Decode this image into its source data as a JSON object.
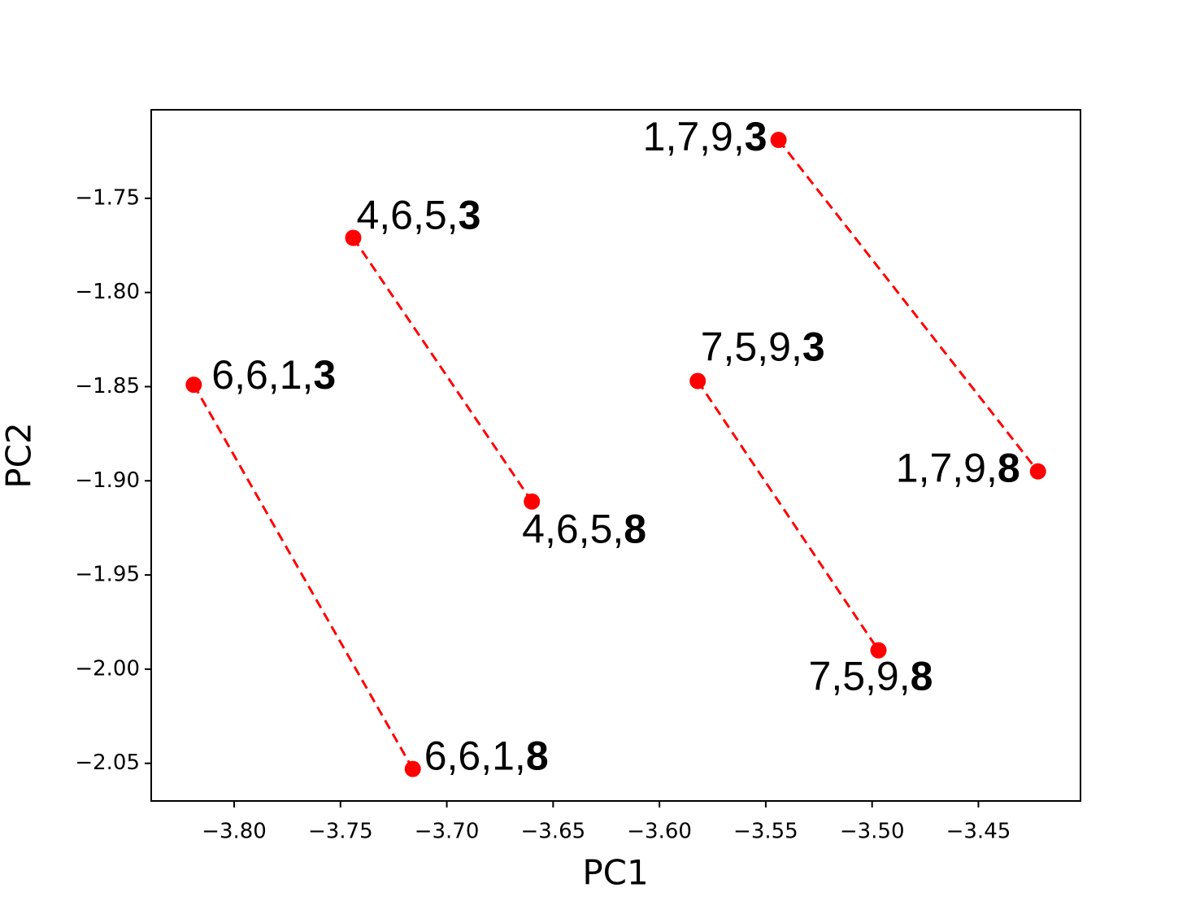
{
  "chart_data": {
    "type": "scatter",
    "xlabel": "PC1",
    "ylabel": "PC2",
    "color": "#ff0000",
    "xlim": [
      -3.839,
      -3.402
    ],
    "ylim": [
      -2.07,
      -1.703
    ],
    "xticks": [
      {
        "value": -3.8,
        "label": "−3.80"
      },
      {
        "value": -3.75,
        "label": "−3.75"
      },
      {
        "value": -3.7,
        "label": "−3.70"
      },
      {
        "value": -3.65,
        "label": "−3.65"
      },
      {
        "value": -3.6,
        "label": "−3.60"
      },
      {
        "value": -3.55,
        "label": "−3.55"
      },
      {
        "value": -3.5,
        "label": "−3.50"
      },
      {
        "value": -3.45,
        "label": "−3.45"
      }
    ],
    "yticks": [
      {
        "value": -1.75,
        "label": "−1.75"
      },
      {
        "value": -1.8,
        "label": "−1.80"
      },
      {
        "value": -1.85,
        "label": "−1.85"
      },
      {
        "value": -1.9,
        "label": "−1.90"
      },
      {
        "value": -1.95,
        "label": "−1.95"
      },
      {
        "value": -2.0,
        "label": "−2.00"
      },
      {
        "value": -2.05,
        "label": "−2.05"
      }
    ],
    "pairs": [
      {
        "x": [
          -3.819,
          -3.716
        ],
        "y": [
          -1.849,
          -2.053
        ],
        "labels": [
          {
            "text": "6,6,1,",
            "bold": "3"
          },
          {
            "text": "6,6,1,",
            "bold": "8"
          }
        ]
      },
      {
        "x": [
          -3.744,
          -3.66
        ],
        "y": [
          -1.771,
          -1.911
        ],
        "labels": [
          {
            "text": "4,6,5,",
            "bold": "3"
          },
          {
            "text": "4,6,5,",
            "bold": "8"
          }
        ]
      },
      {
        "x": [
          -3.582,
          -3.497
        ],
        "y": [
          -1.847,
          -1.99
        ],
        "labels": [
          {
            "text": "7,5,9,",
            "bold": "3"
          },
          {
            "text": "7,5,9,",
            "bold": "8"
          }
        ]
      },
      {
        "x": [
          -3.544,
          -3.422
        ],
        "y": [
          -1.719,
          -1.895
        ],
        "labels": [
          {
            "text": "1,7,9,",
            "bold": "3"
          },
          {
            "text": "1,7,9,",
            "bold": "8"
          }
        ]
      }
    ]
  }
}
